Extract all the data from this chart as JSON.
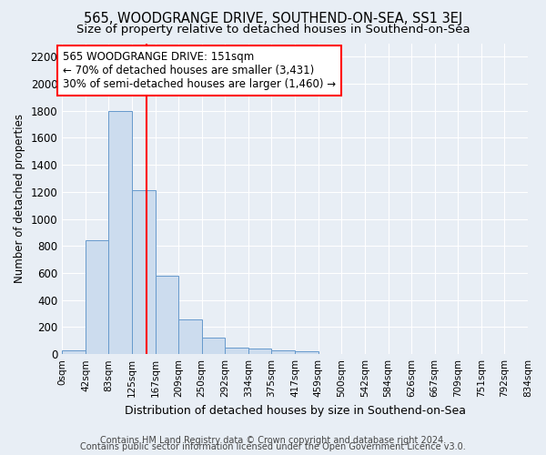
{
  "title": "565, WOODGRANGE DRIVE, SOUTHEND-ON-SEA, SS1 3EJ",
  "subtitle": "Size of property relative to detached houses in Southend-on-Sea",
  "xlabel": "Distribution of detached houses by size in Southend-on-Sea",
  "ylabel": "Number of detached properties",
  "footnote1": "Contains HM Land Registry data © Crown copyright and database right 2024.",
  "footnote2": "Contains public sector information licensed under the Open Government Licence v3.0.",
  "bar_edges": [
    0,
    42,
    83,
    125,
    167,
    209,
    250,
    292,
    334,
    375,
    417,
    459,
    500,
    542,
    584,
    626,
    667,
    709,
    751,
    792,
    834
  ],
  "bar_heights": [
    30,
    840,
    1800,
    1210,
    580,
    255,
    120,
    50,
    40,
    30,
    20,
    0,
    0,
    0,
    0,
    0,
    0,
    0,
    0,
    0
  ],
  "bar_color": "#ccdcee",
  "bar_edgecolor": "#6699cc",
  "bar_linewidth": 0.7,
  "vline_x": 151,
  "vline_color": "red",
  "vline_linewidth": 1.5,
  "annotation_line1": "565 WOODGRANGE DRIVE: 151sqm",
  "annotation_line2": "← 70% of detached houses are smaller (3,431)",
  "annotation_line3": "30% of semi-detached houses are larger (1,460) →",
  "annotation_box_color": "white",
  "annotation_box_edgecolor": "red",
  "ylim": [
    0,
    2300
  ],
  "yticks": [
    0,
    200,
    400,
    600,
    800,
    1000,
    1200,
    1400,
    1600,
    1800,
    2000,
    2200
  ],
  "tick_labels": [
    "0sqm",
    "42sqm",
    "83sqm",
    "125sqm",
    "167sqm",
    "209sqm",
    "250sqm",
    "292sqm",
    "334sqm",
    "375sqm",
    "417sqm",
    "459sqm",
    "500sqm",
    "542sqm",
    "584sqm",
    "626sqm",
    "667sqm",
    "709sqm",
    "751sqm",
    "792sqm",
    "834sqm"
  ],
  "bg_color": "#e8eef5",
  "plot_bg_color": "#e8eef5",
  "grid_color": "#ffffff",
  "title_fontsize": 10.5,
  "subtitle_fontsize": 9.5,
  "xlabel_fontsize": 9,
  "ylabel_fontsize": 8.5,
  "ytick_fontsize": 8.5,
  "xtick_fontsize": 7.5,
  "annotation_fontsize": 8.5,
  "footnote_fontsize": 7
}
